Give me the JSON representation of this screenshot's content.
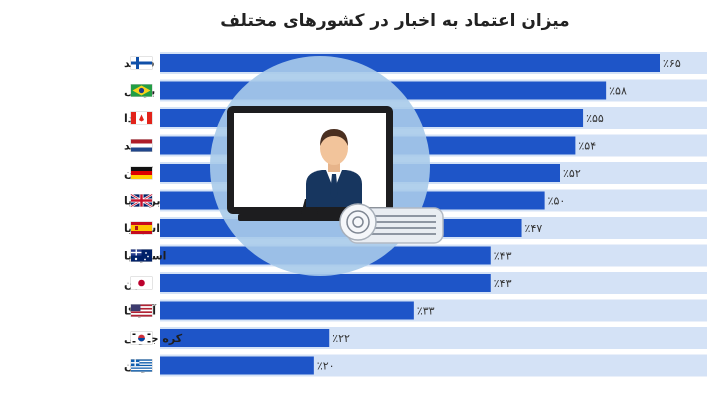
{
  "chart_data": {
    "type": "bar",
    "orientation": "horizontal",
    "title": "میزان اعتماد به اخبار در کشورهای مختلف",
    "categories": [
      "فنلاند",
      "برزیل",
      "کانادا",
      "هلند",
      "آلمان",
      "بریتانیا",
      "اسپانیا",
      "استرالیا",
      "ژاپن",
      "آمریکا",
      "کره جنوبی",
      "یونان"
    ],
    "values": [
      65,
      58,
      55,
      54,
      52,
      50,
      47,
      43,
      43,
      33,
      22,
      20
    ],
    "value_labels": [
      "٪۶۵",
      "٪۵۸",
      "٪۵۵",
      "٪۵۴",
      "٪۵۲",
      "٪۵۰",
      "٪۴۷",
      "٪۴۳",
      "٪۴۳",
      "٪۳۳",
      "٪۲۲",
      "٪۲۰"
    ],
    "flags": [
      "flag-finland-icon",
      "flag-brazil-icon",
      "flag-canada-icon",
      "flag-netherlands-icon",
      "flag-germany-icon",
      "flag-uk-icon",
      "flag-spain-icon",
      "flag-australia-icon",
      "flag-japan-icon",
      "flag-usa-icon",
      "flag-south-korea-icon",
      "flag-greece-icon"
    ],
    "grid": false,
    "legend": "none",
    "colors": {
      "bar": "#1e55c8",
      "stripe": "#d4e2f6",
      "circle": "#a9cbea"
    }
  },
  "illustration": {
    "icons": [
      "tv-icon",
      "news-anchor-icon",
      "newspaper-icon"
    ]
  }
}
